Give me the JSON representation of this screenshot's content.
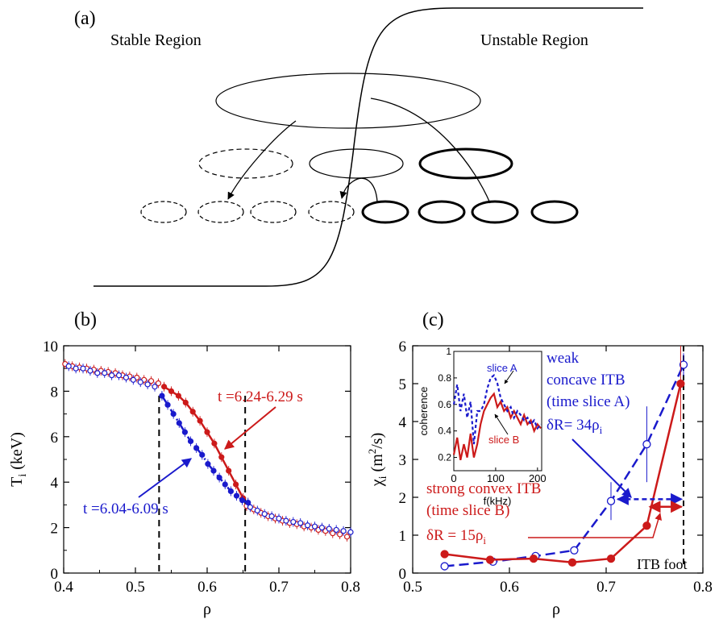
{
  "panel_a": {
    "label": "(a)",
    "stable_text": "Stable Region",
    "unstable_text": "Unstable Region"
  },
  "chart_data": [
    {
      "panel": "(b)",
      "type": "scatter",
      "ylabel": "T",
      "ylabel_sub": "i",
      "ylabel_unit": " (keV)",
      "xlabel": "ρ",
      "xlim": [
        0.4,
        0.8
      ],
      "ylim": [
        0,
        10
      ],
      "xticks": [
        "0.4",
        "0.5",
        "0.6",
        "0.7",
        "0.8"
      ],
      "yticks": [
        "0",
        "2",
        "4",
        "6",
        "8",
        "10"
      ],
      "vlines": [
        0.533,
        0.653
      ],
      "colors": {
        "red": "#cc1a1a",
        "blue": "#1a1acc"
      },
      "annotations": {
        "red": "t =6.24-6.29 s",
        "blue": "t =6.04-6.09 s"
      },
      "red_open": {
        "x": [
          0.402,
          0.412,
          0.422,
          0.432,
          0.442,
          0.452,
          0.462,
          0.472,
          0.482,
          0.492,
          0.502,
          0.512,
          0.522,
          0.532,
          0.655,
          0.665,
          0.675,
          0.685,
          0.695,
          0.705,
          0.715,
          0.725,
          0.735,
          0.745,
          0.755,
          0.765,
          0.775,
          0.785,
          0.795
        ],
        "y": [
          9.2,
          9.1,
          9.05,
          9.0,
          8.95,
          8.9,
          8.85,
          8.8,
          8.7,
          8.65,
          8.6,
          8.5,
          8.45,
          8.35,
          2.95,
          2.8,
          2.65,
          2.5,
          2.4,
          2.3,
          2.2,
          2.15,
          2.05,
          2.0,
          1.9,
          1.85,
          1.75,
          1.7,
          1.6
        ]
      },
      "red_filled": {
        "x": [
          0.54,
          0.55,
          0.56,
          0.57,
          0.58,
          0.59,
          0.6,
          0.61,
          0.62,
          0.63,
          0.64,
          0.65
        ],
        "y": [
          8.2,
          8.0,
          7.8,
          7.5,
          7.1,
          6.7,
          6.2,
          5.7,
          5.1,
          4.5,
          3.9,
          3.3
        ]
      },
      "blue_open": {
        "x": [
          0.407,
          0.417,
          0.427,
          0.437,
          0.447,
          0.457,
          0.467,
          0.477,
          0.487,
          0.497,
          0.507,
          0.517,
          0.527,
          0.66,
          0.67,
          0.68,
          0.69,
          0.7,
          0.71,
          0.72,
          0.73,
          0.74,
          0.75,
          0.76,
          0.77,
          0.78,
          0.79,
          0.8
        ],
        "y": [
          9.1,
          9.0,
          9.0,
          8.9,
          8.8,
          8.8,
          8.7,
          8.7,
          8.6,
          8.5,
          8.4,
          8.3,
          8.2,
          2.9,
          2.75,
          2.6,
          2.5,
          2.4,
          2.3,
          2.25,
          2.2,
          2.1,
          2.05,
          2.0,
          1.95,
          1.9,
          1.85,
          1.8
        ]
      },
      "blue_filled": {
        "x": [
          0.537,
          0.545,
          0.553,
          0.561,
          0.569,
          0.577,
          0.585,
          0.593,
          0.601,
          0.609,
          0.617,
          0.625,
          0.633,
          0.641,
          0.649,
          0.657
        ],
        "y": [
          7.8,
          7.4,
          7.0,
          6.6,
          6.2,
          5.8,
          5.5,
          5.2,
          4.8,
          4.5,
          4.2,
          3.9,
          3.6,
          3.4,
          3.2,
          3.1
        ]
      }
    },
    {
      "panel": "(c)",
      "type": "line",
      "ylabel": "χ",
      "ylabel_sub": "i",
      "ylabel_unit": " (m",
      "ylabel_sup": "2",
      "ylabel_tail": "/s)",
      "xlabel": "ρ",
      "xlim": [
        0.5,
        0.8
      ],
      "ylim": [
        0,
        6
      ],
      "xticks": [
        "0.5",
        "0.6",
        "0.7",
        "0.8"
      ],
      "yticks": [
        "0",
        "1",
        "2",
        "3",
        "4",
        "5",
        "6"
      ],
      "vline": 0.78,
      "series": [
        {
          "name": "weak concave ITB (time slice A)",
          "color": "#1a1acc",
          "x": [
            0.533,
            0.583,
            0.627,
            0.667,
            0.705,
            0.742,
            0.78
          ],
          "y": [
            0.18,
            0.3,
            0.45,
            0.6,
            1.9,
            3.4,
            5.5
          ],
          "err": [
            0,
            0,
            0,
            0,
            0.5,
            1.0,
            0.3
          ]
        },
        {
          "name": "strong convex ITB (time slice B)",
          "color": "#cc1a1a",
          "x": [
            0.533,
            0.58,
            0.625,
            0.665,
            0.705,
            0.742,
            0.777
          ],
          "y": [
            0.5,
            0.35,
            0.38,
            0.28,
            0.38,
            1.25,
            5.0
          ],
          "err": [
            0.1,
            0,
            0,
            0,
            0,
            0,
            1.0
          ]
        }
      ],
      "labels": {
        "blue_1": "weak",
        "blue_2": "concave ITB",
        "blue_3": "(time slice A)",
        "blue_dr": "δR= 34ρ",
        "blue_dr_sub": "i",
        "red_1": "strong convex ITB",
        "red_2": "(time slice B)",
        "red_dr": "δR = 15ρ",
        "red_dr_sub": "i",
        "itb_foot": "ITB foot"
      },
      "inset": {
        "type": "line",
        "ylabel": "coherence",
        "xlabel": "f(kHz)",
        "xlim": [
          0,
          210
        ],
        "ylim": [
          0.1,
          1.0
        ],
        "xticks": [
          "0",
          "100",
          "200"
        ],
        "yticks": [
          "0.2",
          "0.4",
          "0.6",
          "0.8",
          "1"
        ],
        "slice_a_label": "slice A",
        "slice_b_label": "slice B",
        "slice_a": {
          "x": [
            0,
            8,
            16,
            24,
            32,
            40,
            48,
            56,
            64,
            72,
            80,
            88,
            96,
            104,
            112,
            120,
            128,
            136,
            144,
            152,
            160,
            168,
            176,
            184,
            192,
            200,
            208
          ],
          "y": [
            0.6,
            0.75,
            0.55,
            0.68,
            0.5,
            0.62,
            0.3,
            0.55,
            0.55,
            0.6,
            0.72,
            0.8,
            0.82,
            0.76,
            0.65,
            0.6,
            0.55,
            0.58,
            0.5,
            0.55,
            0.52,
            0.48,
            0.5,
            0.45,
            0.48,
            0.42,
            0.45
          ]
        },
        "slice_b": {
          "x": [
            0,
            8,
            16,
            24,
            32,
            40,
            48,
            56,
            64,
            72,
            80,
            88,
            96,
            104,
            112,
            120,
            128,
            136,
            144,
            152,
            160,
            168,
            176,
            184,
            192,
            200,
            208
          ],
          "y": [
            0.22,
            0.35,
            0.18,
            0.3,
            0.2,
            0.38,
            0.2,
            0.3,
            0.45,
            0.55,
            0.6,
            0.65,
            0.68,
            0.58,
            0.62,
            0.55,
            0.58,
            0.5,
            0.55,
            0.5,
            0.45,
            0.52,
            0.45,
            0.48,
            0.4,
            0.45,
            0.42
          ]
        }
      }
    }
  ]
}
